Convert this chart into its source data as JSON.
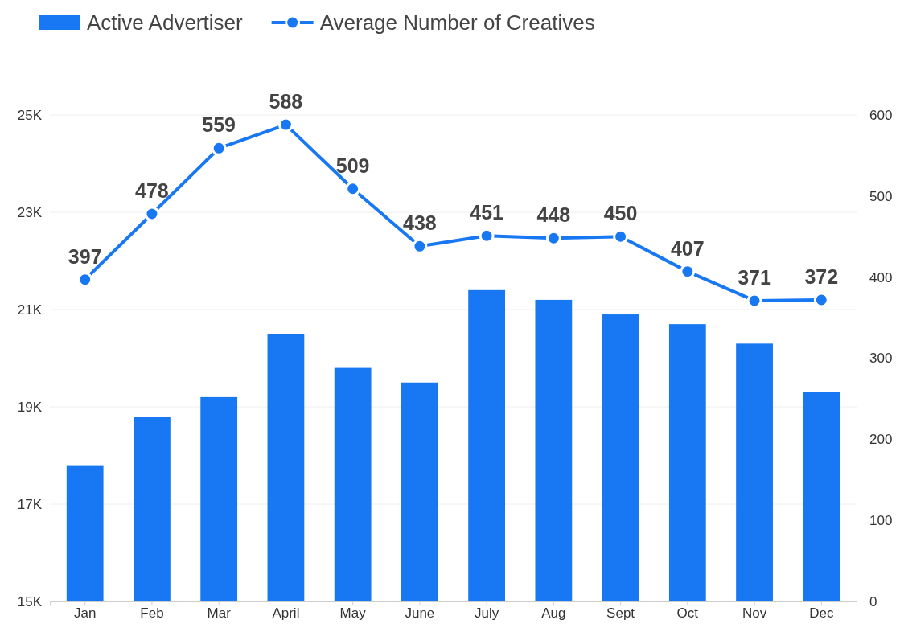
{
  "chart_data": {
    "type": "bar",
    "categories": [
      "Jan",
      "Feb",
      "Mar",
      "April",
      "May",
      "June",
      "July",
      "Aug",
      "Sept",
      "Oct",
      "Nov",
      "Dec"
    ],
    "series": [
      {
        "name": "Active Advertiser",
        "color": "#1877f2",
        "values": [
          17800,
          18800,
          19200,
          20500,
          19800,
          19500,
          21400,
          21200,
          20900,
          20700,
          20300,
          19300
        ]
      },
      {
        "name": "Average Number of Creatives",
        "type": "line",
        "axis": "y2",
        "color": "#1877f2",
        "marker": "circle",
        "line_style": "solid",
        "values": [
          397,
          478,
          559,
          588,
          509,
          438,
          451,
          448,
          450,
          407,
          371,
          372
        ],
        "value_labels": [
          "397",
          "478",
          "559",
          "588",
          "509",
          "438",
          "451",
          "448",
          "450",
          "407",
          "371",
          "372"
        ]
      }
    ],
    "ylim": [
      15000,
      25000
    ],
    "yticks": [
      {
        "value": 15000,
        "label": "15K"
      },
      {
        "value": 17000,
        "label": "17K"
      },
      {
        "value": 19000,
        "label": "19K"
      },
      {
        "value": 21000,
        "label": "21K"
      },
      {
        "value": 23000,
        "label": "23K"
      },
      {
        "value": 25000,
        "label": "25K"
      }
    ],
    "y2lim": [
      0,
      600
    ],
    "y2ticks": [
      0,
      100,
      200,
      300,
      400,
      500,
      600
    ],
    "grid": "y",
    "legend": "top left"
  }
}
